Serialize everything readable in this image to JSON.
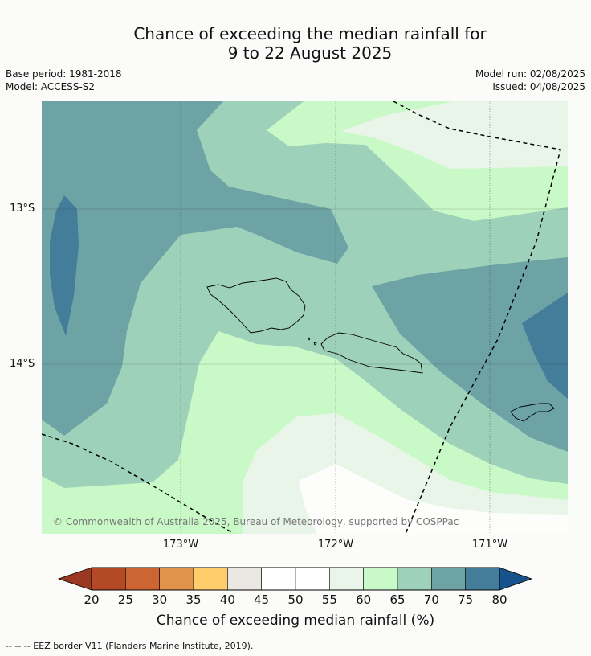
{
  "title": {
    "line1": "Chance of exceeding the median rainfall for",
    "line2": "9 to 22 August 2025"
  },
  "meta": {
    "base_period": "Base period: 1981-2018",
    "model": "Model: ACCESS-S2",
    "model_run": "Model run: 02/08/2025",
    "issued": "Issued: 04/08/2025"
  },
  "map": {
    "lat_labels": [
      "13°S",
      "14°S"
    ],
    "lon_labels": [
      "173°W",
      "172°W",
      "171°W"
    ],
    "copyright": "© Commonwealth of Australia 2025, Bureau of Meteorology, supported by COSPPac",
    "colors": {
      "c40_45": "#ebebe6",
      "c45_55": "#ffffff",
      "c55_60": "#eaf5ea",
      "c60_65": "#caf9c8",
      "c65_70": "#9dd1b9",
      "c70_75": "#6ea3a6",
      "c75_80": "#437d9a",
      "c80p": "#16528b",
      "c25_30": "#b64a25"
    }
  },
  "legend": {
    "title": "Chance of exceeding median rainfall (%)",
    "ticks": [
      "20",
      "25",
      "30",
      "35",
      "40",
      "45",
      "50",
      "55",
      "60",
      "65",
      "70",
      "75",
      "80"
    ],
    "colors": [
      "#b34a25",
      "#cc6532",
      "#e0934a",
      "#fece6c",
      "#ebe7e2",
      "#ffffff",
      "#ffffff",
      "#eaf5ea",
      "#caf9c8",
      "#9dd1b9",
      "#6ea3a6",
      "#437d9a"
    ],
    "low_arrow_color": "#9b3822",
    "high_arrow_color": "#16528b"
  },
  "footer": {
    "eez_note": "--  --  -- EEZ border V11 (Flanders Marine Institute, 2019)."
  }
}
